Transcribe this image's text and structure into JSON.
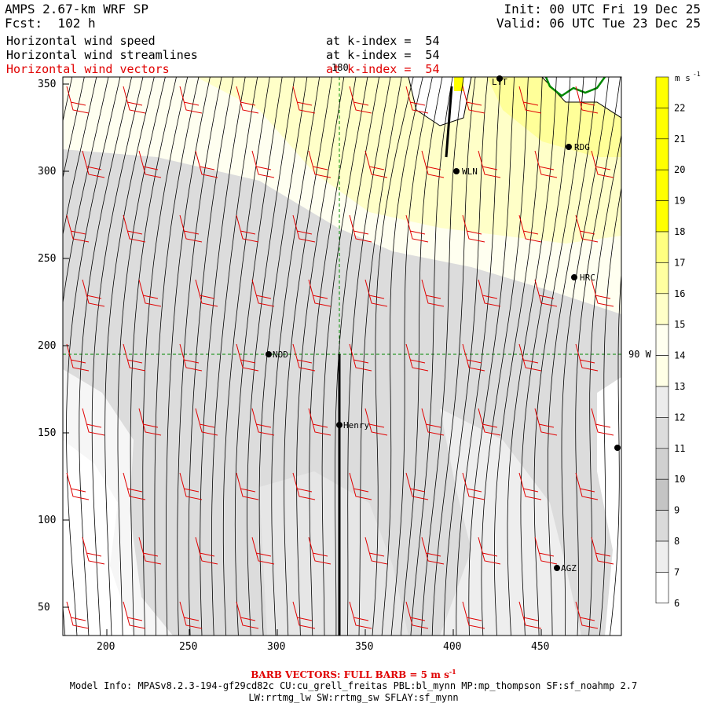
{
  "header": {
    "model": "AMPS 2.67-km WRF SP",
    "forecast": "Fcst:  102 h",
    "init": "Init: 00 UTC Fri 19 Dec 25",
    "valid": "Valid: 06 UTC Tue 23 Dec 25"
  },
  "fields": [
    {
      "name": "Horizontal wind speed",
      "level": "at k-index =  54"
    },
    {
      "name": "Horizontal wind streamlines",
      "level": "at k-index =  54"
    },
    {
      "name": "Horizontal wind vectors",
      "level": "at k-index =  54"
    }
  ],
  "axes": {
    "x_ticks": [
      "200",
      "250",
      "300",
      "350",
      "400",
      "450"
    ],
    "y_ticks": [
      "350",
      "300",
      "250",
      "200",
      "150",
      "100",
      "50"
    ],
    "meridian_label": "180",
    "parallel_label": "90 W"
  },
  "stations": [
    {
      "name": "LYT"
    },
    {
      "name": "RDG"
    },
    {
      "name": "WLN"
    },
    {
      "name": "HRC"
    },
    {
      "name": "NOD"
    },
    {
      "name": "Henry"
    },
    {
      "name": "AGZ"
    },
    {
      "name": ""
    }
  ],
  "colorbar": {
    "unit": "m s",
    "unit_exp": "-1",
    "labels": [
      "22",
      "21",
      "20",
      "19",
      "18",
      "17",
      "16",
      "15",
      "14",
      "13",
      "12",
      "11",
      "10",
      "9",
      "8",
      "7",
      "6"
    ],
    "colors": [
      "#ffff00",
      "#ffff00",
      "#ffff00",
      "#ffff00",
      "#ffff00",
      "#ffff80",
      "#ffffa0",
      "#ffffc8",
      "#fffff0",
      "#ffffe6",
      "#ececec",
      "#dcdcdc",
      "#d0d0d0",
      "#c4c4c4",
      "#dadada",
      "#eeeeee",
      "#ffffff"
    ]
  },
  "footer": {
    "barb": "BARB VECTORS:  FULL BARB = 5 m s",
    "barb_exp": "-1",
    "model_info": "Model Info: MPASv8.2.3-194-gf29cd82c CU:cu_grell_freitas PBL:bl_mynn MP:mp_thompson SF:sf_noahmp 2.7",
    "model_info2": "LW:rrtmg_lw SW:rrtmg_sw SFLAY:sf_mynn"
  }
}
